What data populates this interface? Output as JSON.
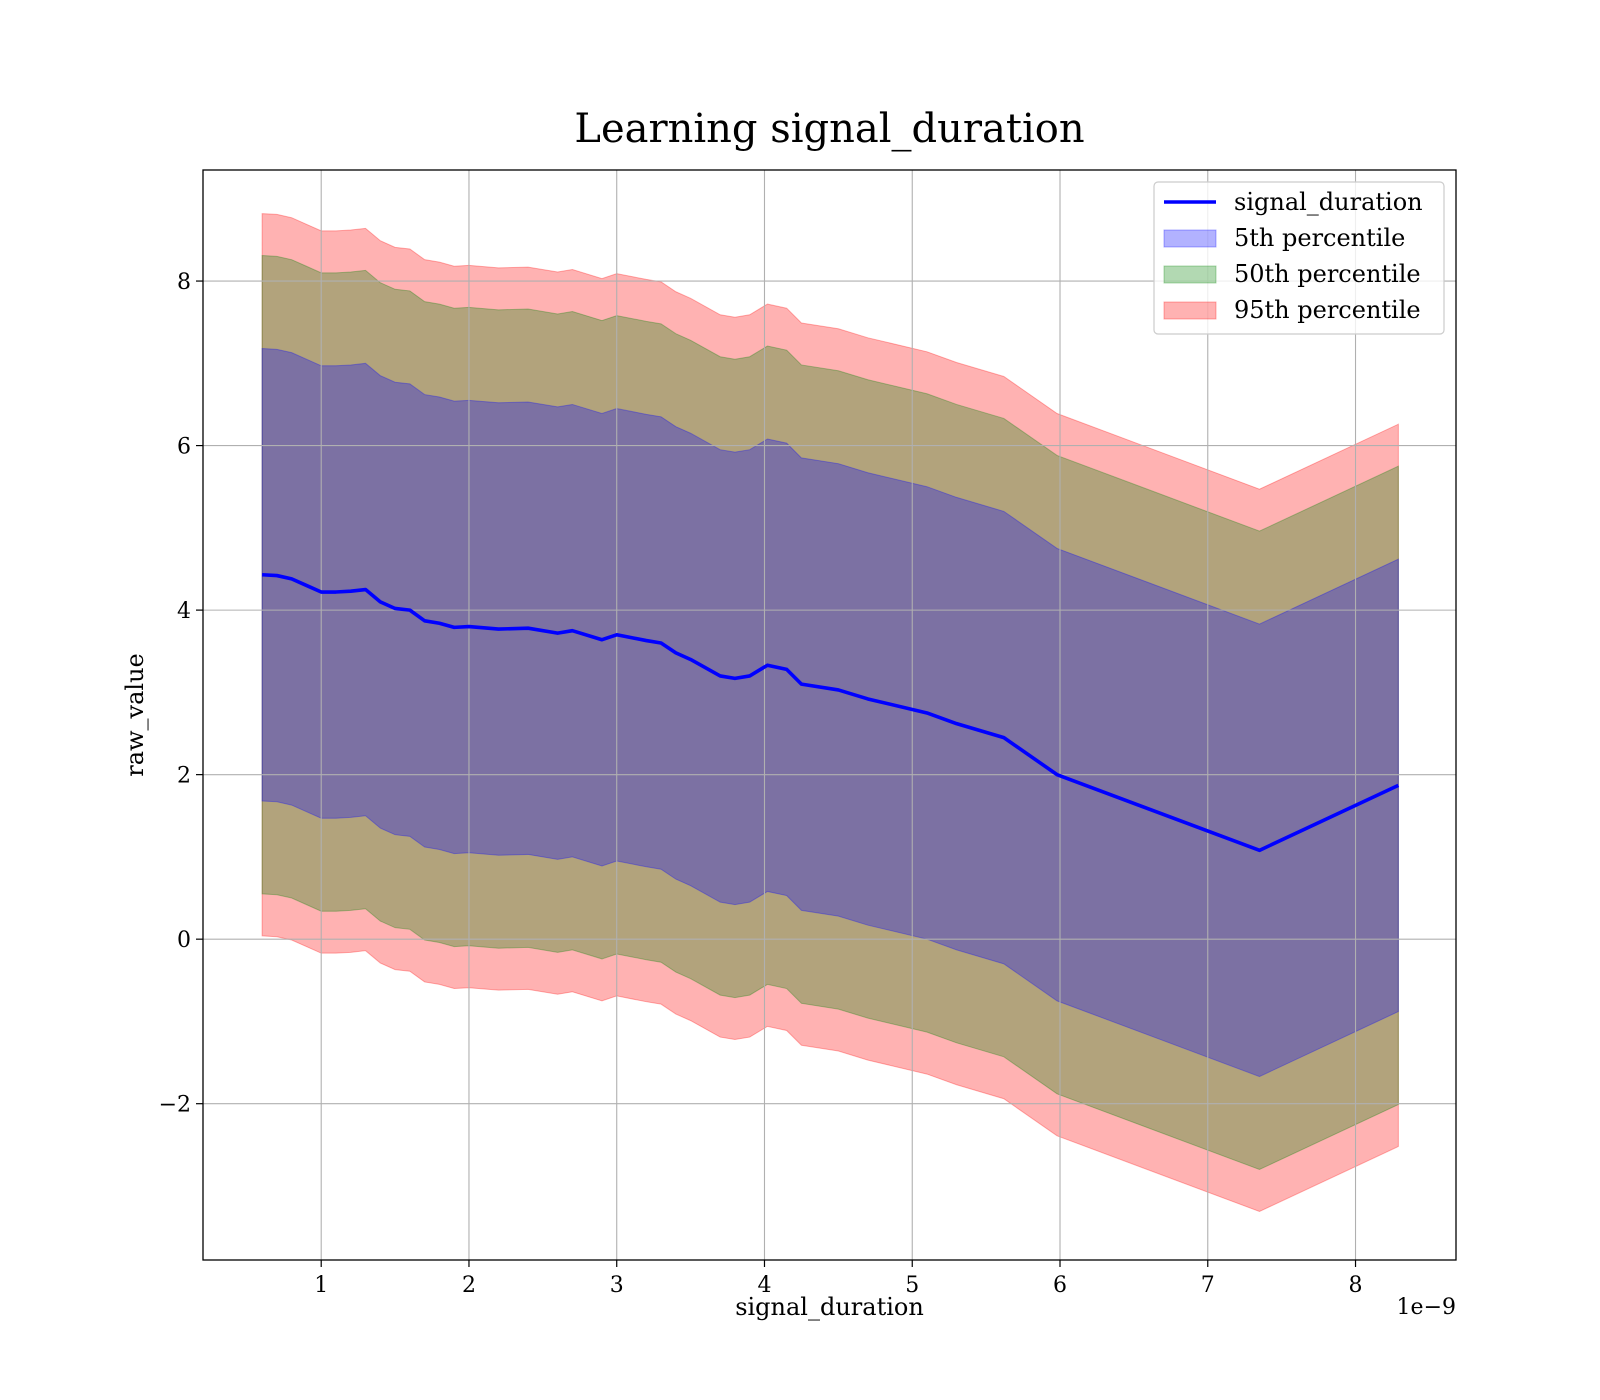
{
  "chart_data": {
    "type": "area",
    "title": "Learning signal_duration",
    "xlabel": "signal_duration",
    "ylabel": "raw_value",
    "x_offset_label": "1e−9",
    "xlim": [
      0.2,
      8.68
    ],
    "ylim": [
      -3.9,
      9.35
    ],
    "xticks": [
      1,
      2,
      3,
      4,
      5,
      6,
      7,
      8
    ],
    "xtick_labels": [
      "1",
      "2",
      "3",
      "4",
      "5",
      "6",
      "7",
      "8"
    ],
    "yticks": [
      -2,
      0,
      2,
      4,
      6,
      8
    ],
    "ytick_labels": [
      "−2",
      "0",
      "2",
      "4",
      "6",
      "8"
    ],
    "grid": true,
    "legend_position": "top-right",
    "x": [
      0.6,
      0.7,
      0.8,
      0.9,
      1.0,
      1.1,
      1.2,
      1.3,
      1.4,
      1.5,
      1.6,
      1.7,
      1.8,
      1.9,
      2.0,
      2.2,
      2.4,
      2.6,
      2.7,
      2.9,
      3.0,
      3.2,
      3.3,
      3.4,
      3.5,
      3.7,
      3.8,
      3.9,
      4.02,
      4.15,
      4.25,
      4.5,
      4.7,
      5.1,
      5.3,
      5.62,
      5.98,
      7.35,
      8.29
    ],
    "series": [
      {
        "name": "signal_duration",
        "type": "line",
        "color": "#0000ff",
        "values": [
          4.43,
          4.42,
          4.38,
          4.3,
          4.22,
          4.22,
          4.23,
          4.25,
          4.1,
          4.02,
          4.0,
          3.87,
          3.84,
          3.79,
          3.8,
          3.77,
          3.78,
          3.72,
          3.75,
          3.64,
          3.7,
          3.63,
          3.6,
          3.48,
          3.4,
          3.2,
          3.17,
          3.2,
          3.33,
          3.28,
          3.1,
          3.03,
          2.92,
          2.75,
          2.62,
          2.45,
          2.0,
          1.08,
          1.87
        ]
      },
      {
        "name": "5th percentile",
        "type": "band",
        "color": "#0000ff",
        "upper_offset": 2.75,
        "lower_offset": -2.75
      },
      {
        "name": "50th percentile",
        "type": "band",
        "color": "#008000",
        "upper_offset": 3.88,
        "lower_offset": -3.88
      },
      {
        "name": "95th percentile",
        "type": "band",
        "color": "#ff0000",
        "upper_offset": 4.39,
        "lower_offset": -4.39
      }
    ]
  }
}
